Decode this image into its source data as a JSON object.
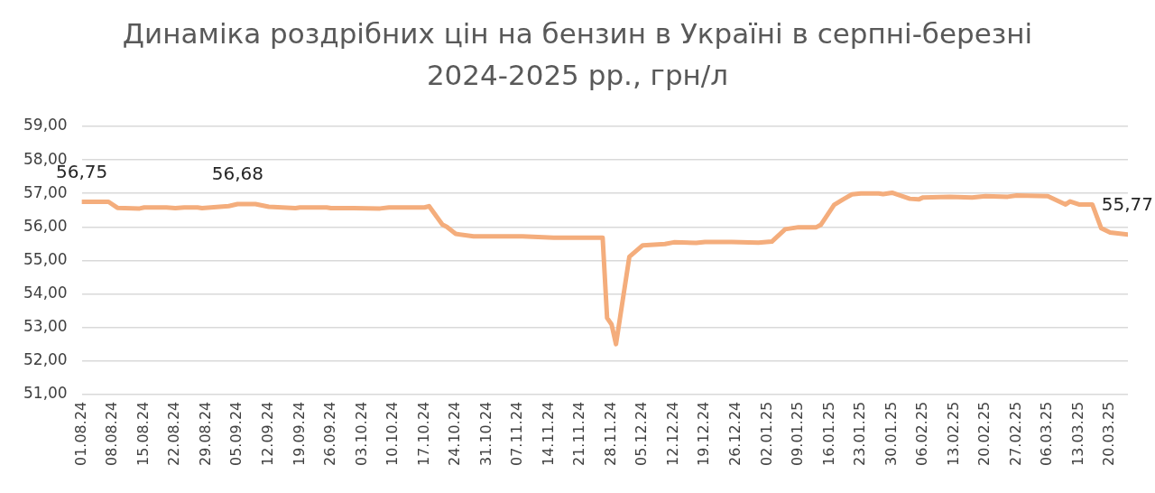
{
  "chart_data": {
    "type": "line",
    "title": "Динаміка роздрібних цін на бензин в Україні в серпні-березні 2024-2025 рр., грн/л",
    "x": [
      "2024-08-01",
      "2024-08-07",
      "2024-08-09",
      "2024-08-14",
      "2024-08-15",
      "2024-08-20",
      "2024-08-22",
      "2024-08-24",
      "2024-08-27",
      "2024-08-28",
      "2024-09-03",
      "2024-09-05",
      "2024-09-09",
      "2024-09-12",
      "2024-09-18",
      "2024-09-19",
      "2024-09-25",
      "2024-09-26",
      "2024-10-01",
      "2024-10-07",
      "2024-10-09",
      "2024-10-17",
      "2024-10-18",
      "2024-10-21",
      "2024-10-22",
      "2024-10-24",
      "2024-10-28",
      "2024-11-08",
      "2024-11-15",
      "2024-11-26",
      "2024-11-27",
      "2024-11-28",
      "2024-11-29",
      "2024-12-02",
      "2024-12-05",
      "2024-12-10",
      "2024-12-12",
      "2024-12-17",
      "2024-12-19",
      "2024-12-25",
      "2024-12-31",
      "2025-01-03",
      "2025-01-06",
      "2025-01-09",
      "2025-01-13",
      "2025-01-14",
      "2025-01-17",
      "2025-01-19",
      "2025-01-21",
      "2025-01-23",
      "2025-01-27",
      "2025-01-28",
      "2025-01-30",
      "2025-02-03",
      "2025-02-05",
      "2025-02-06",
      "2025-02-12",
      "2025-02-17",
      "2025-02-20",
      "2025-02-25",
      "2025-02-27",
      "2025-03-06",
      "2025-03-10",
      "2025-03-11",
      "2025-03-13",
      "2025-03-16",
      "2025-03-18",
      "2025-03-20",
      "2025-03-24"
    ],
    "series": [
      {
        "color": "#f4ad7c",
        "values": [
          56.75,
          56.75,
          56.57,
          56.55,
          56.58,
          56.58,
          56.56,
          56.58,
          56.58,
          56.56,
          56.62,
          56.68,
          56.68,
          56.6,
          56.56,
          56.58,
          56.58,
          56.56,
          56.56,
          56.55,
          56.58,
          56.58,
          56.62,
          56.07,
          56.0,
          55.79,
          55.72,
          55.72,
          55.68,
          55.68,
          53.28,
          53.09,
          52.5,
          55.11,
          55.45,
          55.49,
          55.54,
          55.52,
          55.55,
          55.55,
          55.53,
          55.56,
          55.93,
          55.99,
          55.99,
          56.06,
          56.66,
          56.82,
          56.97,
          57.0,
          57.0,
          56.98,
          57.02,
          56.84,
          56.82,
          56.88,
          56.9,
          56.88,
          56.92,
          56.9,
          56.94,
          56.92,
          56.67,
          56.76,
          56.67,
          56.67,
          55.96,
          55.83,
          55.77
        ],
        "value_labels": [
          "56,75",
          null,
          null,
          null,
          null,
          null,
          null,
          null,
          null,
          null,
          null,
          "56,68",
          null,
          null,
          null,
          null,
          null,
          null,
          null,
          null,
          null,
          null,
          null,
          null,
          null,
          null,
          null,
          null,
          null,
          null,
          null,
          null,
          null,
          null,
          null,
          null,
          null,
          null,
          null,
          null,
          null,
          null,
          null,
          null,
          null,
          null,
          null,
          null,
          null,
          null,
          null,
          null,
          null,
          null,
          null,
          null,
          null,
          null,
          null,
          null,
          null,
          null,
          null,
          null,
          null,
          null,
          null,
          null,
          "55,77"
        ]
      }
    ],
    "xlim": [
      "2024-08-01",
      "2025-03-24"
    ],
    "xticks": [
      {
        "value": "2024-08-01",
        "label": "01.08.24"
      },
      {
        "value": "2024-08-08",
        "label": "08.08.24"
      },
      {
        "value": "2024-08-15",
        "label": "15.08.24"
      },
      {
        "value": "2024-08-22",
        "label": "22.08.24"
      },
      {
        "value": "2024-08-29",
        "label": "29.08.24"
      },
      {
        "value": "2024-09-05",
        "label": "05.09.24"
      },
      {
        "value": "2024-09-12",
        "label": "12.09.24"
      },
      {
        "value": "2024-09-19",
        "label": "19.09.24"
      },
      {
        "value": "2024-09-26",
        "label": "26.09.24"
      },
      {
        "value": "2024-10-03",
        "label": "03.10.24"
      },
      {
        "value": "2024-10-10",
        "label": "10.10.24"
      },
      {
        "value": "2024-10-17",
        "label": "17.10.24"
      },
      {
        "value": "2024-10-24",
        "label": "24.10.24"
      },
      {
        "value": "2024-10-31",
        "label": "31.10.24"
      },
      {
        "value": "2024-11-07",
        "label": "07.11.24"
      },
      {
        "value": "2024-11-14",
        "label": "14.11.24"
      },
      {
        "value": "2024-11-21",
        "label": "21.11.24"
      },
      {
        "value": "2024-11-28",
        "label": "28.11.24"
      },
      {
        "value": "2024-12-05",
        "label": "05.12.24"
      },
      {
        "value": "2024-12-12",
        "label": "12.12.24"
      },
      {
        "value": "2024-12-19",
        "label": "19.12.24"
      },
      {
        "value": "2024-12-26",
        "label": "26.12.24"
      },
      {
        "value": "2025-01-02",
        "label": "02.01.25"
      },
      {
        "value": "2025-01-09",
        "label": "09.01.25"
      },
      {
        "value": "2025-01-16",
        "label": "16.01.25"
      },
      {
        "value": "2025-01-23",
        "label": "23.01.25"
      },
      {
        "value": "2025-01-30",
        "label": "30.01.25"
      },
      {
        "value": "2025-02-06",
        "label": "06.02.25"
      },
      {
        "value": "2025-02-13",
        "label": "13.02.25"
      },
      {
        "value": "2025-02-20",
        "label": "20.02.25"
      },
      {
        "value": "2025-02-27",
        "label": "27.02.25"
      },
      {
        "value": "2025-03-06",
        "label": "06.03.25"
      },
      {
        "value": "2025-03-13",
        "label": "13.03.25"
      },
      {
        "value": "2025-03-20",
        "label": "20.03.25"
      }
    ],
    "ylim": [
      51,
      59
    ],
    "yticks": [
      {
        "value": 51,
        "label": "51,00"
      },
      {
        "value": 52,
        "label": "52,00"
      },
      {
        "value": 53,
        "label": "53,00"
      },
      {
        "value": 54,
        "label": "54,00"
      },
      {
        "value": 55,
        "label": "55,00"
      },
      {
        "value": 56,
        "label": "56,00"
      },
      {
        "value": 57,
        "label": "57,00"
      },
      {
        "value": 58,
        "label": "58,00"
      },
      {
        "value": 59,
        "label": "59,00"
      }
    ],
    "grid": "y",
    "marker": "none",
    "line_style": "solid"
  }
}
